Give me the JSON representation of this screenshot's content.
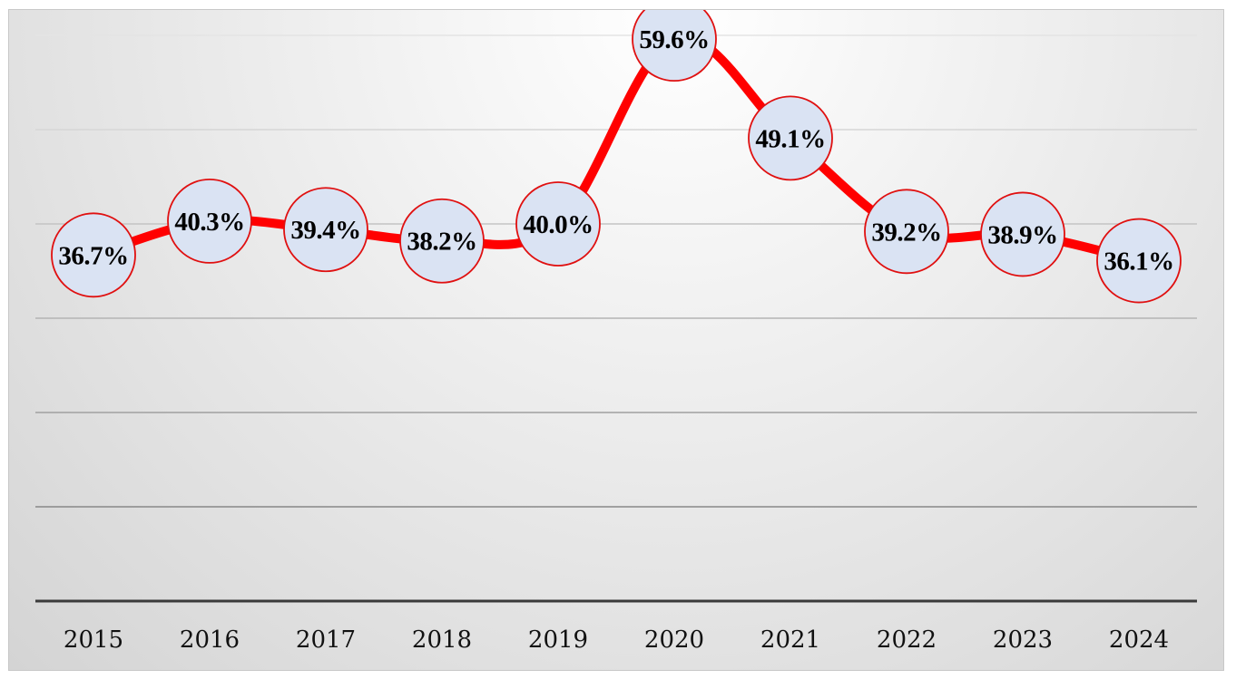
{
  "chart_data": {
    "type": "line",
    "title": "",
    "xlabel": "",
    "ylabel": "",
    "categories": [
      "2015",
      "2016",
      "2017",
      "2018",
      "2019",
      "2020",
      "2021",
      "2022",
      "2023",
      "2024"
    ],
    "series": [
      {
        "values": [
          36.7,
          40.3,
          39.4,
          38.2,
          40.0,
          59.6,
          49.1,
          39.2,
          38.9,
          36.1
        ],
        "labels": [
          "36.7%",
          "40.3%",
          "39.4%",
          "38.2%",
          "40.0%",
          "59.6%",
          "49.1%",
          "39.2%",
          "38.9%",
          "36.1%"
        ],
        "line_color": "#ff0000",
        "marker_fill": "#dae3f3",
        "marker_stroke": "#e01010"
      }
    ],
    "ylim": [
      0,
      60
    ],
    "y_gridlines": [
      0,
      10,
      20,
      30,
      40,
      50,
      60
    ],
    "y_tick_labels_shown": false,
    "grid": true,
    "legend": "none",
    "smooth": true
  }
}
